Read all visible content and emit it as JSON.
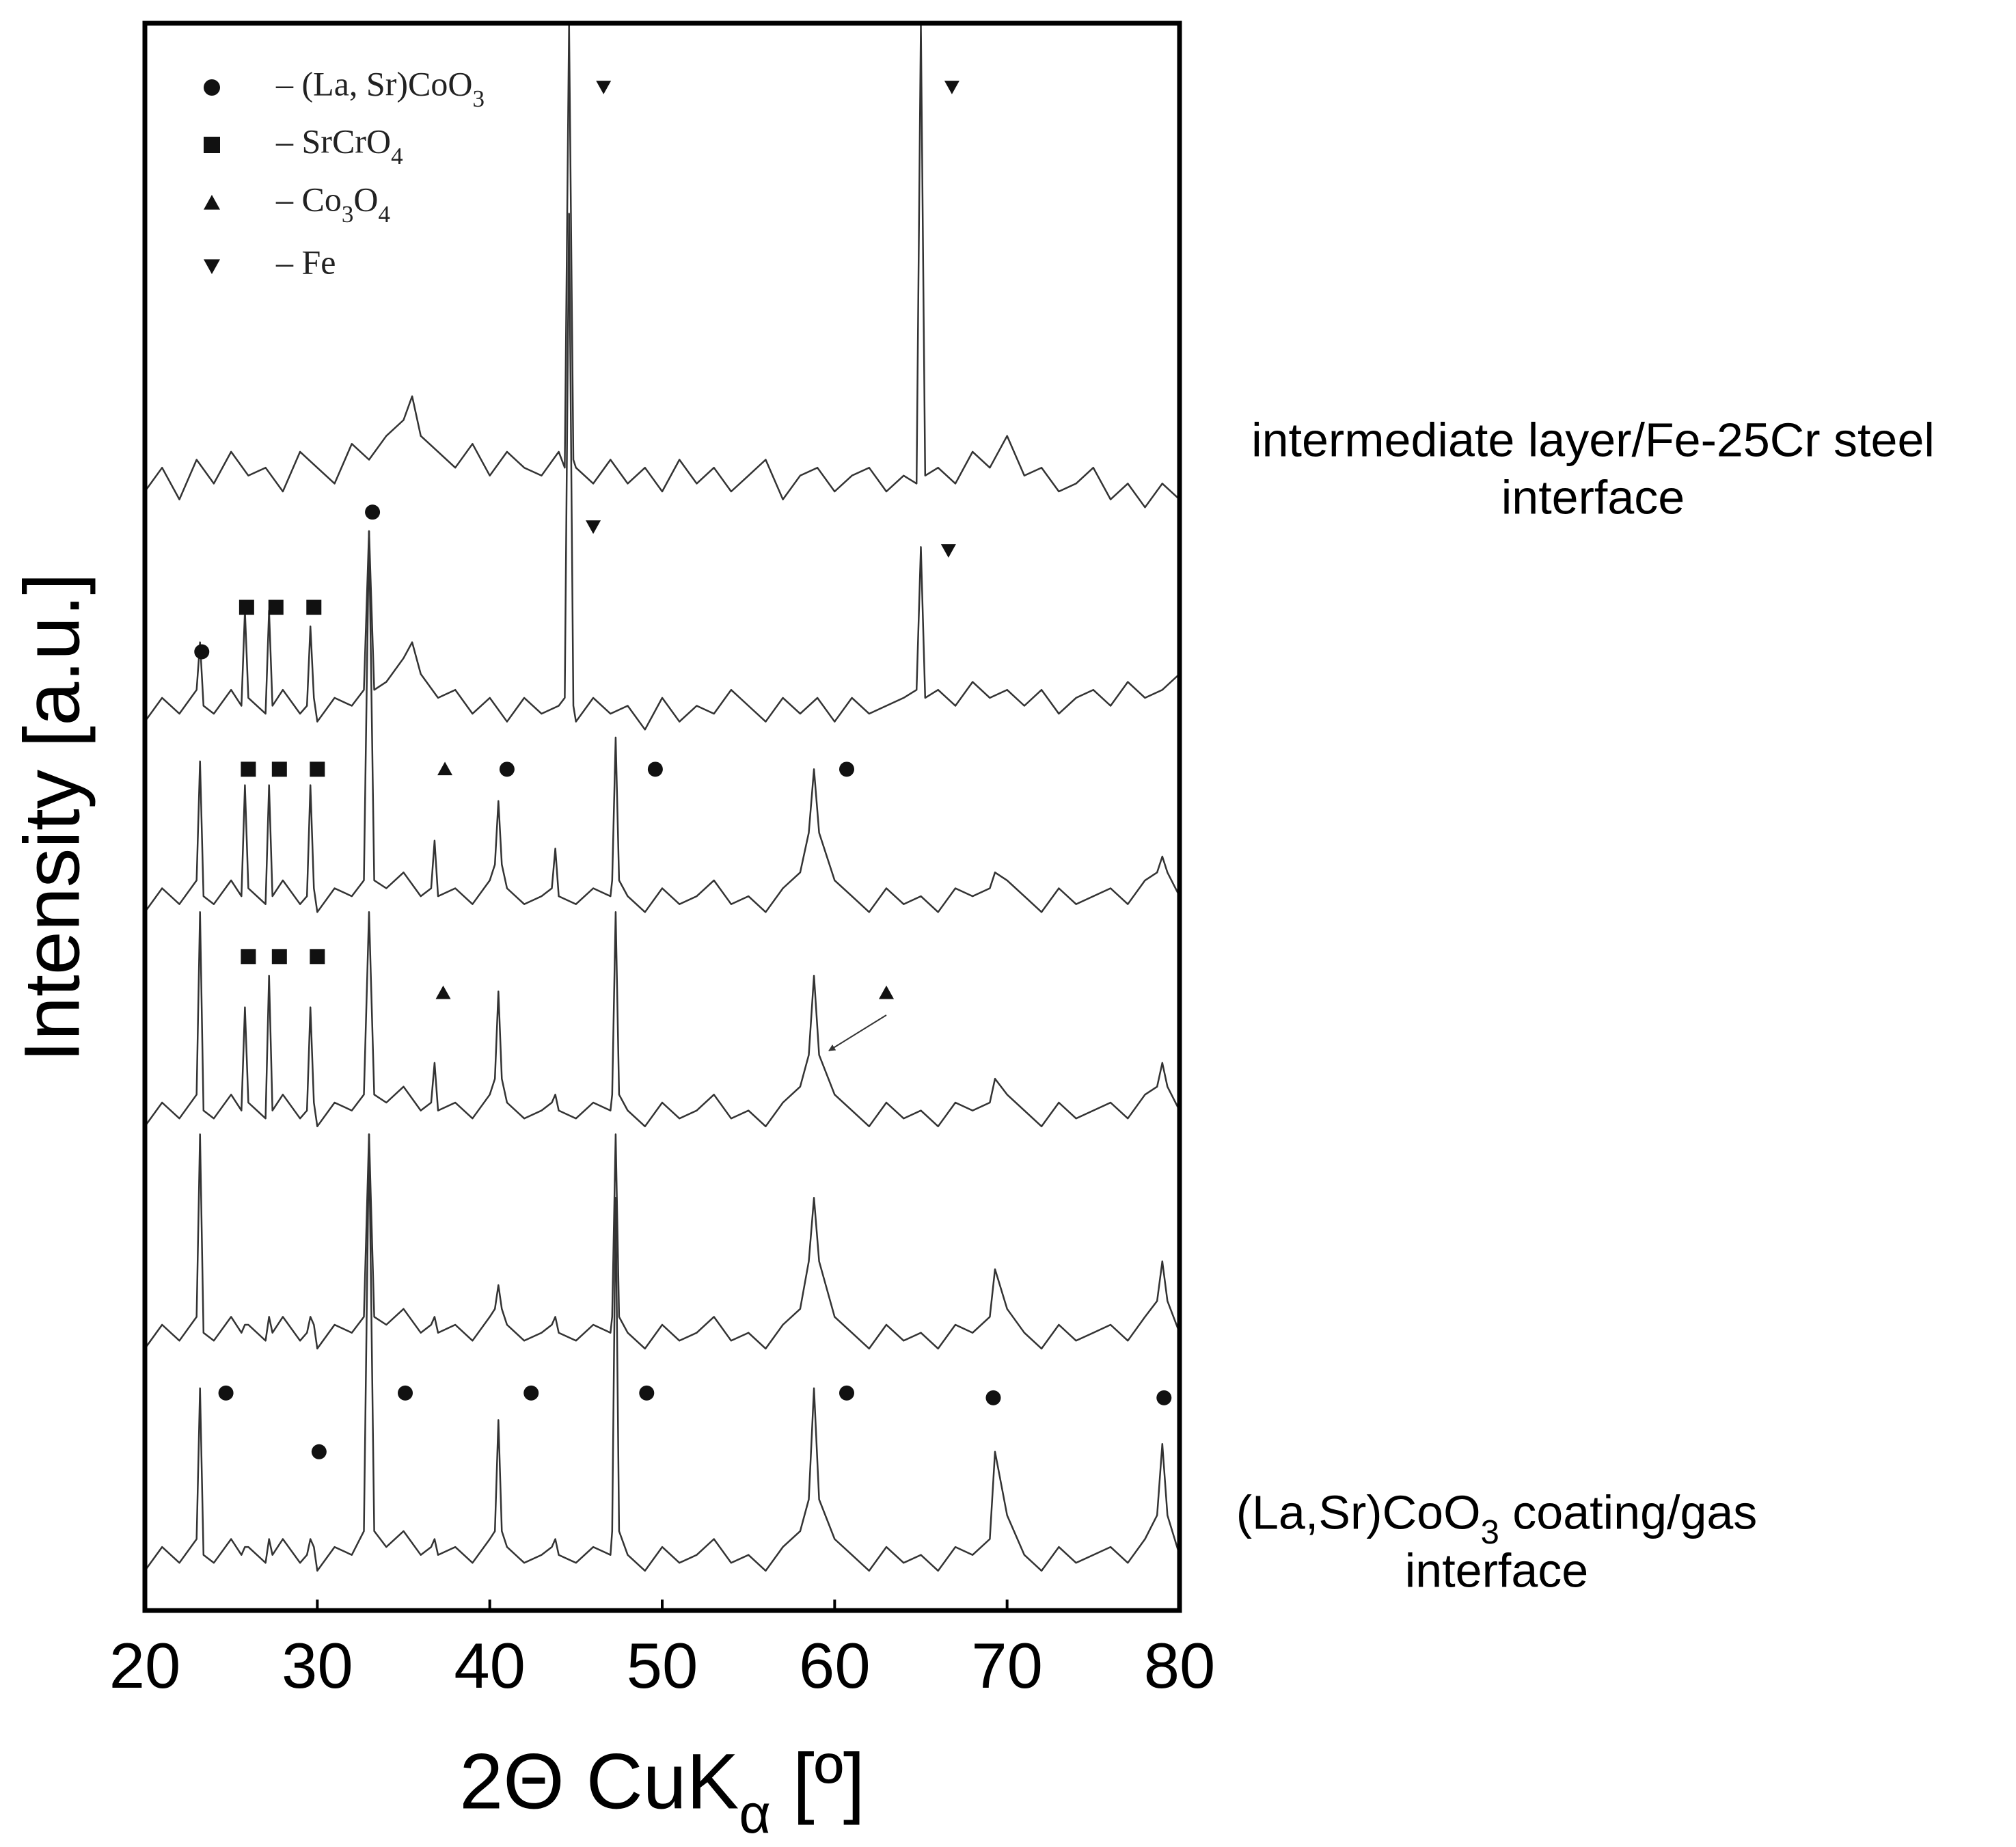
{
  "chart_data": {
    "type": "line",
    "x_label": "2Θ CuKα [º]",
    "y_label": "Intensity [a.u.]",
    "xlim": [
      20,
      80
    ],
    "xticks": [
      20,
      30,
      40,
      50,
      60,
      70,
      80
    ],
    "ylim": [
      0,
      100
    ],
    "legend": [
      {
        "symbol": "circle",
        "label": "– (La, Sr)CoO3"
      },
      {
        "symbol": "square",
        "label": "– SrCrO4"
      },
      {
        "symbol": "triangle-up",
        "label": "– Co3O4"
      },
      {
        "symbol": "triangle-down",
        "label": "– Fe"
      }
    ],
    "annotations": [
      "intermediate layer/Fe-25Cr steel",
      "interface",
      "(La,Sr)CoO3 coating/gas",
      "interface"
    ],
    "series": [
      {
        "color": "#333333",
        "x": [
          20,
          21,
          22,
          23,
          24,
          25,
          26,
          27,
          28,
          29,
          30,
          31,
          32,
          33,
          34,
          35,
          35.5,
          36,
          37,
          38,
          39,
          40,
          41,
          42,
          43,
          44,
          44.35,
          44.6,
          44.85,
          45,
          46,
          47,
          48,
          49,
          50,
          51,
          52,
          53,
          54,
          55,
          56,
          57,
          58,
          59,
          60,
          61,
          62,
          63,
          64,
          64.75,
          65,
          65.25,
          66,
          67,
          68,
          69,
          70,
          71,
          72,
          73,
          74,
          75,
          76,
          77,
          78,
          79,
          80
        ],
        "values": [
          70.5,
          72,
          70,
          72.5,
          71,
          73,
          71.5,
          72,
          70.5,
          73,
          72,
          71,
          73.5,
          72.5,
          74,
          75,
          76.5,
          74,
          73,
          72,
          73.5,
          71.5,
          73,
          72,
          71.5,
          73,
          72,
          100,
          72.5,
          72,
          71,
          72.5,
          71,
          72,
          70.5,
          72.5,
          71,
          72,
          70.5,
          71.5,
          72.5,
          70,
          71.5,
          72,
          70.5,
          71.5,
          72,
          70.5,
          71.5,
          71,
          100,
          71.5,
          72,
          71,
          73,
          72,
          74,
          71.5,
          72,
          70.5,
          71,
          72,
          70,
          71,
          69.5,
          71,
          70
        ]
      },
      {
        "color": "#333333",
        "x": [
          20,
          21,
          22,
          23,
          23.2,
          23.4,
          24,
          25,
          25.6,
          25.8,
          26,
          27,
          27.2,
          27.4,
          28,
          29,
          29.4,
          29.6,
          29.8,
          30,
          31,
          32,
          32.7,
          33,
          33.3,
          34,
          35,
          35.5,
          36,
          37,
          38,
          39,
          40,
          41,
          42,
          43,
          44,
          44.35,
          44.6,
          44.85,
          45,
          46,
          47,
          48,
          49,
          50,
          51,
          52,
          53,
          54,
          55,
          56,
          57,
          58,
          59,
          60,
          61,
          62,
          63,
          64,
          64.75,
          65,
          65.25,
          66,
          67,
          68,
          69,
          70,
          71,
          72,
          73,
          74,
          75,
          76,
          77,
          78,
          79,
          80
        ],
        "values": [
          56,
          57.5,
          56.5,
          58,
          61,
          57,
          56.5,
          58,
          57,
          63,
          57.5,
          56.5,
          63,
          57,
          58,
          56.5,
          57,
          62,
          57.5,
          56,
          57.5,
          57,
          58,
          68,
          58,
          58.5,
          60,
          61,
          59,
          57.5,
          58,
          56.5,
          57.5,
          56,
          57.5,
          56.5,
          57,
          57.5,
          88,
          57,
          56,
          57.5,
          56.5,
          57,
          55.5,
          57.5,
          56,
          57,
          56.5,
          58,
          57,
          56,
          57.5,
          56.5,
          57.5,
          56,
          57.5,
          56.5,
          57,
          57.5,
          58,
          67,
          57.5,
          58,
          57,
          58.5,
          57.5,
          58,
          57,
          58,
          56.5,
          57.5,
          58,
          57,
          58.5,
          57.5,
          58,
          59
        ]
      },
      {
        "color": "#333333",
        "x": [
          20,
          21,
          22,
          23,
          23.2,
          23.4,
          24,
          25,
          25.6,
          25.8,
          26,
          27,
          27.2,
          27.4,
          28,
          29,
          29.4,
          29.6,
          29.8,
          30,
          31,
          32,
          32.7,
          33,
          33.3,
          34,
          35,
          36,
          36.6,
          36.8,
          37,
          38,
          39,
          40,
          40.3,
          40.5,
          40.7,
          41,
          42,
          43,
          43.6,
          43.8,
          44,
          45,
          46,
          47,
          47.1,
          47.3,
          47.5,
          48,
          49,
          50,
          51,
          52,
          53,
          54,
          55,
          56,
          57,
          58,
          58.5,
          58.8,
          59.1,
          60,
          61,
          62,
          63,
          64,
          65,
          66,
          67,
          68,
          69,
          69.3,
          70,
          71,
          72,
          73,
          74,
          75,
          76,
          77,
          78,
          78.7,
          79,
          79.3,
          80
        ],
        "values": [
          44,
          45.5,
          44.5,
          46,
          53.5,
          45,
          44.5,
          46,
          45,
          52,
          45.5,
          44.5,
          52,
          45,
          46,
          44.5,
          45,
          52,
          45.5,
          44,
          45.5,
          45,
          46,
          68,
          46,
          45.5,
          46.5,
          45,
          45.5,
          48.5,
          45,
          45.5,
          44.5,
          46,
          47,
          51,
          47,
          45.5,
          44.5,
          45,
          45.5,
          48,
          45,
          44.5,
          45.5,
          45,
          46,
          55,
          46,
          45,
          44,
          45.5,
          44.5,
          45,
          46,
          44.5,
          45,
          44,
          45.5,
          46.5,
          49,
          53,
          49,
          46,
          45,
          44,
          45.5,
          44.5,
          45,
          44,
          45.5,
          45,
          45.5,
          46.5,
          46,
          45,
          44,
          45.5,
          44.5,
          45,
          45.5,
          44.5,
          46,
          46.5,
          47.5,
          46.5,
          45
        ]
      },
      {
        "color": "#333333",
        "x": [
          20,
          21,
          22,
          23,
          23.2,
          23.4,
          24,
          25,
          25.6,
          25.8,
          26,
          27,
          27.2,
          27.4,
          28,
          29,
          29.4,
          29.6,
          29.8,
          30,
          31,
          32,
          32.7,
          33,
          33.3,
          34,
          35,
          36,
          36.6,
          36.8,
          37,
          38,
          39,
          40,
          40.3,
          40.5,
          40.7,
          41,
          42,
          43,
          43.6,
          43.8,
          44,
          45,
          46,
          47,
          47.1,
          47.3,
          47.5,
          48,
          49,
          50,
          51,
          52,
          53,
          54,
          55,
          56,
          57,
          58,
          58.5,
          58.8,
          59.1,
          60,
          61,
          62,
          63,
          64,
          65,
          66,
          67,
          68,
          69,
          69.3,
          70,
          71,
          72,
          73,
          74,
          75,
          76,
          77,
          78,
          78.7,
          79,
          79.3,
          80
        ],
        "values": [
          30.5,
          32,
          31,
          32.5,
          44,
          31.5,
          31,
          32.5,
          31.5,
          38,
          32,
          31,
          40,
          31.5,
          32.5,
          31,
          31.5,
          38,
          32,
          30.5,
          32,
          31.5,
          32.5,
          44,
          32.5,
          32,
          33,
          31.5,
          32,
          34.5,
          31.5,
          32,
          31,
          32.5,
          33.5,
          39,
          33.5,
          32,
          31,
          31.5,
          32,
          32.5,
          31.5,
          31,
          32,
          31.5,
          32.5,
          44,
          32.5,
          31.5,
          30.5,
          32,
          31,
          31.5,
          32.5,
          31,
          31.5,
          30.5,
          32,
          33,
          35,
          40,
          35,
          32.5,
          31.5,
          30.5,
          32,
          31,
          31.5,
          30.5,
          32,
          31.5,
          32,
          33.5,
          32.5,
          31.5,
          30.5,
          32,
          31,
          31.5,
          32,
          31,
          32.5,
          33,
          34.5,
          33,
          31.5
        ]
      },
      {
        "color": "#333333",
        "x": [
          20,
          21,
          22,
          23,
          23.2,
          23.4,
          24,
          25,
          25.6,
          25.8,
          26,
          27,
          27.2,
          27.4,
          28,
          29,
          29.4,
          29.6,
          29.8,
          30,
          31,
          32,
          32.7,
          33,
          33.3,
          34,
          35,
          36,
          36.6,
          36.8,
          37,
          38,
          39,
          40,
          40.3,
          40.5,
          40.7,
          41,
          42,
          43,
          43.6,
          43.8,
          44,
          45,
          46,
          47,
          47.1,
          47.3,
          47.5,
          48,
          49,
          50,
          51,
          52,
          53,
          54,
          55,
          56,
          57,
          58,
          58.5,
          58.8,
          59.1,
          60,
          61,
          62,
          63,
          64,
          65,
          66,
          67,
          68,
          69,
          69.3,
          70,
          71,
          72,
          73,
          74,
          75,
          76,
          77,
          78,
          78.7,
          79,
          79.3,
          80
        ],
        "values": [
          16.5,
          18,
          17,
          18.5,
          30,
          17.5,
          17,
          18.5,
          17.5,
          18,
          18,
          17,
          18.5,
          17.5,
          18.5,
          17,
          17.5,
          18.5,
          18,
          16.5,
          18,
          17.5,
          18.5,
          30,
          18.5,
          18,
          19,
          17.5,
          18,
          18.5,
          17.5,
          18,
          17,
          18.5,
          19,
          20.5,
          19,
          18,
          17,
          17.5,
          18,
          18.5,
          17.5,
          17,
          18,
          17.5,
          18.5,
          30,
          18.5,
          17.5,
          16.5,
          18,
          17,
          17.5,
          18.5,
          17,
          17.5,
          16.5,
          18,
          19,
          22,
          26,
          22,
          18.5,
          17.5,
          16.5,
          18,
          17,
          17.5,
          16.5,
          18,
          17.5,
          18.5,
          21.5,
          19,
          17.5,
          16.5,
          18,
          17,
          17.5,
          18,
          17,
          18.5,
          19.5,
          22,
          19.5,
          17.5
        ]
      },
      {
        "color": "#333333",
        "x": [
          20,
          21,
          22,
          23,
          23.2,
          23.4,
          24,
          25,
          25.6,
          25.8,
          26,
          27,
          27.2,
          27.4,
          28,
          29,
          29.4,
          29.6,
          29.8,
          30,
          31,
          32,
          32.7,
          33,
          33.3,
          34,
          35,
          36,
          36.6,
          36.8,
          37,
          38,
          39,
          40,
          40.3,
          40.5,
          40.7,
          41,
          42,
          43,
          43.6,
          43.8,
          44,
          45,
          46,
          47,
          47.1,
          47.3,
          47.5,
          48,
          49,
          50,
          51,
          52,
          53,
          54,
          55,
          56,
          57,
          58,
          58.5,
          58.8,
          59.1,
          60,
          61,
          62,
          63,
          64,
          65,
          66,
          67,
          68,
          69,
          69.3,
          70,
          71,
          72,
          73,
          74,
          75,
          76,
          77,
          78,
          78.7,
          79,
          79.3,
          80
        ],
        "values": [
          2.5,
          4,
          3,
          4.5,
          14,
          3.5,
          3,
          4.5,
          3.5,
          4,
          4,
          3,
          4.5,
          3.5,
          4.5,
          3,
          3.5,
          4.5,
          4,
          2.5,
          4,
          3.5,
          5,
          30,
          5,
          4,
          5,
          3.5,
          4,
          4.5,
          3.5,
          4,
          3,
          4.5,
          5,
          12,
          5,
          4,
          3,
          3.5,
          4,
          4.5,
          3.5,
          3,
          4,
          3.5,
          5,
          26,
          5,
          3.5,
          2.5,
          4,
          3,
          3.5,
          4.5,
          3,
          3.5,
          2.5,
          4,
          5,
          7,
          14,
          7,
          4.5,
          3.5,
          2.5,
          4,
          3,
          3.5,
          2.5,
          4,
          3.5,
          4.5,
          10,
          6,
          3.5,
          2.5,
          4,
          3,
          3.5,
          4,
          3,
          4.5,
          6,
          10.5,
          6,
          3.5
        ]
      }
    ],
    "markers": [
      {
        "symbol": "triangle-down",
        "x": 46.6,
        "y": 96.0
      },
      {
        "symbol": "triangle-down",
        "x": 66.8,
        "y": 96.0
      },
      {
        "symbol": "circle",
        "x": 33.2,
        "y": 69.2
      },
      {
        "symbol": "triangle-down",
        "x": 46.0,
        "y": 68.3
      },
      {
        "symbol": "triangle-down",
        "x": 66.6,
        "y": 66.8
      },
      {
        "symbol": "square",
        "x": 25.9,
        "y": 63.2
      },
      {
        "symbol": "square",
        "x": 27.6,
        "y": 63.2
      },
      {
        "symbol": "square",
        "x": 29.8,
        "y": 63.2
      },
      {
        "symbol": "circle",
        "x": 23.3,
        "y": 60.4
      },
      {
        "symbol": "square",
        "x": 26.0,
        "y": 53.0
      },
      {
        "symbol": "square",
        "x": 27.8,
        "y": 53.0
      },
      {
        "symbol": "square",
        "x": 30.0,
        "y": 53.0
      },
      {
        "symbol": "triangle-up",
        "x": 37.4,
        "y": 53.0
      },
      {
        "symbol": "circle",
        "x": 41.0,
        "y": 53.0
      },
      {
        "symbol": "circle",
        "x": 49.6,
        "y": 53.0
      },
      {
        "symbol": "circle",
        "x": 60.7,
        "y": 53.0
      },
      {
        "symbol": "square",
        "x": 26.0,
        "y": 41.2
      },
      {
        "symbol": "square",
        "x": 27.8,
        "y": 41.2
      },
      {
        "symbol": "square",
        "x": 30.0,
        "y": 41.2
      },
      {
        "symbol": "triangle-up",
        "x": 37.3,
        "y": 38.9
      },
      {
        "symbol": "triangle-up",
        "x": 63.0,
        "y": 38.9
      },
      {
        "symbol": "circle",
        "x": 24.7,
        "y": 13.7
      },
      {
        "symbol": "circle",
        "x": 35.1,
        "y": 13.7
      },
      {
        "symbol": "circle",
        "x": 42.4,
        "y": 13.7
      },
      {
        "symbol": "circle",
        "x": 49.1,
        "y": 13.7
      },
      {
        "symbol": "circle",
        "x": 60.7,
        "y": 13.7
      },
      {
        "symbol": "circle",
        "x": 69.2,
        "y": 13.4
      },
      {
        "symbol": "circle",
        "x": 79.1,
        "y": 13.4
      },
      {
        "symbol": "circle",
        "x": 30.1,
        "y": 10.0
      }
    ]
  }
}
